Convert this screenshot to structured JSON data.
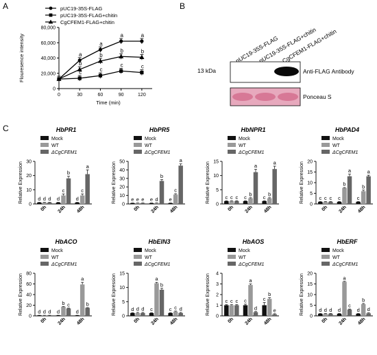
{
  "panel_labels": {
    "a": "A",
    "b": "B",
    "c": "C"
  },
  "chart_data": [
    {
      "type": "line",
      "panel": "A",
      "title": "",
      "xlabel": "Time (min)",
      "ylabel": "Flouresence intensity",
      "x": [
        0,
        30,
        60,
        90,
        120
      ],
      "xticks": [
        "0",
        "30",
        "60",
        "90",
        "120"
      ],
      "yticks": [
        "0",
        "20,000",
        "40,000",
        "60,000",
        "80,000"
      ],
      "xlim": [
        0,
        135
      ],
      "ylim": [
        0,
        80000
      ],
      "legend_position": "top-left",
      "series": [
        {
          "name": "pUC19-35S-FLAG",
          "marker": "circle",
          "values": [
            12500,
            37000,
            51000,
            62000,
            62000
          ],
          "letters": [
            "",
            "a",
            "a",
            "a",
            "a"
          ]
        },
        {
          "name": "pUC19-35S-FLAG+chitin",
          "marker": "square",
          "values": [
            12500,
            13500,
            17000,
            23000,
            21000
          ],
          "letters": [
            "",
            "c",
            "c",
            "c",
            "c"
          ]
        },
        {
          "name": "CgCFEM1-FLAG+chitin",
          "marker": "triangle",
          "values": [
            12500,
            25000,
            36000,
            42000,
            41000
          ],
          "letters": [
            "",
            "b",
            "b",
            "b",
            "b"
          ]
        }
      ]
    },
    {
      "type": "bar",
      "panel": "C",
      "title": "HbPR1",
      "ylabel": "Relative Expression",
      "categories": [
        "0h",
        "24h",
        "48h"
      ],
      "yticks": [
        "0",
        "10",
        "20",
        "30"
      ],
      "ylim": [
        0,
        30
      ],
      "series": [
        {
          "name": "Mock",
          "color": "#111111",
          "values": [
            1.0,
            1.0,
            1.0
          ],
          "errors": [
            0.1,
            0.1,
            0.1
          ],
          "letters": [
            "d",
            "d",
            "d"
          ]
        },
        {
          "name": "WT",
          "color": "#999999",
          "values": [
            1.0,
            6.0,
            6.0
          ],
          "errors": [
            0.1,
            1.0,
            1.0
          ],
          "letters": [
            "d",
            "c",
            "c"
          ]
        },
        {
          "name": "ΔCgCFEM1",
          "color": "#666666",
          "values": [
            1.0,
            18.0,
            21.0
          ],
          "errors": [
            0.1,
            1.5,
            3.0
          ],
          "letters": [
            "d",
            "b",
            "a"
          ]
        }
      ]
    },
    {
      "type": "bar",
      "panel": "C",
      "title": "HbPR5",
      "ylabel": "Relative Expression",
      "categories": [
        "0h",
        "24h",
        "48h"
      ],
      "yticks": [
        "0",
        "10",
        "20",
        "30",
        "40",
        "50"
      ],
      "ylim": [
        0,
        50
      ],
      "series": [
        {
          "name": "Mock",
          "color": "#111111",
          "values": [
            1.0,
            1.0,
            1.0
          ],
          "errors": [
            0.1,
            0.1,
            0.1
          ],
          "letters": [
            "e",
            "e",
            "e"
          ]
        },
        {
          "name": "WT",
          "color": "#999999",
          "values": [
            1.0,
            1.0,
            11.0
          ],
          "errors": [
            0.1,
            0.2,
            1.0
          ],
          "letters": [
            "e",
            "d",
            "c"
          ]
        },
        {
          "name": "ΔCgCFEM1",
          "color": "#666666",
          "values": [
            1.0,
            27.0,
            45.0
          ],
          "errors": [
            0.1,
            1.5,
            2.0
          ],
          "letters": [
            "e",
            "b",
            "a"
          ]
        }
      ]
    },
    {
      "type": "bar",
      "panel": "C",
      "title": "HbNPR1",
      "ylabel": "Relative Expression",
      "categories": [
        "0h",
        "24h",
        "48h"
      ],
      "yticks": [
        "0",
        "5",
        "10",
        "15"
      ],
      "ylim": [
        0,
        15
      ],
      "series": [
        {
          "name": "Mock",
          "color": "#111111",
          "values": [
            1.0,
            1.0,
            1.0
          ],
          "errors": [
            0.1,
            0.1,
            0.1
          ],
          "letters": [
            "c",
            "c",
            "c"
          ]
        },
        {
          "name": "WT",
          "color": "#999999",
          "values": [
            1.0,
            2.0,
            2.0
          ],
          "errors": [
            0.1,
            0.2,
            0.2
          ],
          "letters": [
            "c",
            "b",
            "b"
          ]
        },
        {
          "name": "ΔCgCFEM1",
          "color": "#666666",
          "values": [
            1.0,
            11.2,
            12.3
          ],
          "errors": [
            0.1,
            1.0,
            1.0
          ],
          "letters": [
            "c",
            "a",
            "a"
          ]
        }
      ]
    },
    {
      "type": "bar",
      "panel": "C",
      "title": "HbPAD4",
      "ylabel": "Relative Expression",
      "categories": [
        "0h",
        "24h",
        "48h"
      ],
      "yticks": [
        "0",
        "5",
        "10",
        "15",
        "20"
      ],
      "ylim": [
        0,
        20
      ],
      "series": [
        {
          "name": "Mock",
          "color": "#111111",
          "values": [
            1.0,
            1.0,
            1.0
          ],
          "errors": [
            0.1,
            0.1,
            0.1
          ],
          "letters": [
            "c",
            "c",
            "c"
          ]
        },
        {
          "name": "WT",
          "color": "#999999",
          "values": [
            1.0,
            7.5,
            6.0
          ],
          "errors": [
            0.1,
            0.2,
            0.5
          ],
          "letters": [
            "c",
            "b",
            "b"
          ]
        },
        {
          "name": "ΔCgCFEM1",
          "color": "#666666",
          "values": [
            1.0,
            13.0,
            13.0
          ],
          "errors": [
            0.1,
            1.0,
            0.5
          ],
          "letters": [
            "c",
            "a",
            "a"
          ]
        }
      ]
    },
    {
      "type": "bar",
      "panel": "C",
      "title": "HbACO",
      "ylabel": "Relative Expression",
      "categories": [
        "0h",
        "24h",
        "48h"
      ],
      "yticks": [
        "0",
        "20",
        "40",
        "60",
        "80"
      ],
      "ylim": [
        0,
        80
      ],
      "series": [
        {
          "name": "Mock",
          "color": "#111111",
          "values": [
            1.0,
            1.0,
            1.0
          ],
          "errors": [
            0.1,
            0.1,
            0.1
          ],
          "letters": [
            "d",
            "d",
            "d"
          ]
        },
        {
          "name": "WT",
          "color": "#999999",
          "values": [
            1.0,
            17.0,
            59.0
          ],
          "errors": [
            0.1,
            0.5,
            4.0
          ],
          "letters": [
            "d",
            "b",
            "a"
          ]
        },
        {
          "name": "ΔCgCFEM1",
          "color": "#666666",
          "values": [
            1.0,
            14.0,
            15.0
          ],
          "errors": [
            0.1,
            0.5,
            0.5
          ],
          "letters": [
            "d",
            "c",
            "b"
          ]
        }
      ]
    },
    {
      "type": "bar",
      "panel": "C",
      "title": "HbEIN3",
      "ylabel": "Relative Expression",
      "categories": [
        "0h",
        "24h",
        "48h"
      ],
      "yticks": [
        "0",
        "5",
        "10",
        "15"
      ],
      "ylim": [
        0,
        15
      ],
      "series": [
        {
          "name": "Mock",
          "color": "#111111",
          "values": [
            1.0,
            1.0,
            1.0
          ],
          "errors": [
            0.1,
            0.1,
            0.1
          ],
          "letters": [
            "d",
            "c",
            "c"
          ]
        },
        {
          "name": "WT",
          "color": "#999999",
          "values": [
            1.0,
            11.5,
            1.5
          ],
          "errors": [
            0.2,
            0.3,
            0.2
          ],
          "letters": [
            "d",
            "a",
            "c"
          ]
        },
        {
          "name": "ΔCgCFEM1",
          "color": "#666666",
          "values": [
            1.0,
            9.2,
            1.0
          ],
          "errors": [
            0.2,
            0.5,
            0.2
          ],
          "letters": [
            "d",
            "b",
            "d"
          ]
        }
      ]
    },
    {
      "type": "bar",
      "panel": "C",
      "title": "HbAOS",
      "ylabel": "Relative Expression",
      "categories": [
        "0h",
        "24h",
        "48h"
      ],
      "yticks": [
        "0",
        "1",
        "2",
        "3",
        "4"
      ],
      "ylim": [
        0,
        4
      ],
      "series": [
        {
          "name": "Mock",
          "color": "#111111",
          "values": [
            1.0,
            1.0,
            1.0
          ],
          "errors": [
            0.05,
            0.1,
            0.25
          ],
          "letters": [
            "c",
            "c",
            "c"
          ]
        },
        {
          "name": "WT",
          "color": "#999999",
          "values": [
            1.0,
            2.9,
            1.6
          ],
          "errors": [
            0.05,
            0.1,
            0.1
          ],
          "letters": [
            "c",
            "a",
            "b"
          ]
        },
        {
          "name": "ΔCgCFEM1",
          "color": "#666666",
          "values": [
            1.0,
            0.35,
            0.15
          ],
          "errors": [
            0.05,
            0.05,
            0.05
          ],
          "letters": [
            "c",
            "d",
            "e"
          ]
        }
      ]
    },
    {
      "type": "bar",
      "panel": "C",
      "title": "HbERF",
      "ylabel": "Relative Expression",
      "categories": [
        "0h",
        "24h",
        "48h"
      ],
      "yticks": [
        "0",
        "5",
        "10",
        "15",
        "20"
      ],
      "ylim": [
        0,
        20
      ],
      "series": [
        {
          "name": "Mock",
          "color": "#111111",
          "values": [
            1.0,
            1.0,
            1.0
          ],
          "errors": [
            0.1,
            0.1,
            0.1
          ],
          "letters": [
            "d",
            "d",
            "d"
          ]
        },
        {
          "name": "WT",
          "color": "#999999",
          "values": [
            1.0,
            16.0,
            5.5
          ],
          "errors": [
            0.1,
            0.2,
            0.3
          ],
          "letters": [
            "d",
            "a",
            "b"
          ]
        },
        {
          "name": "ΔCgCFEM1",
          "color": "#666666",
          "values": [
            1.0,
            3.0,
            1.2
          ],
          "errors": [
            0.1,
            0.2,
            0.2
          ],
          "letters": [
            "d",
            "c",
            "d"
          ]
        }
      ]
    }
  ],
  "blot": {
    "lane_labels": [
      "pUC19-35S-FLAG",
      "pUC19-35S-FLAG+chitin",
      "CgCFEM1-FLAG+chitin"
    ],
    "size_marker": "13 kDa",
    "top_label": "Anti-FLAG Antibody",
    "bottom_label": "Ponceau S",
    "band_intensity": [
      0,
      0,
      1
    ]
  }
}
